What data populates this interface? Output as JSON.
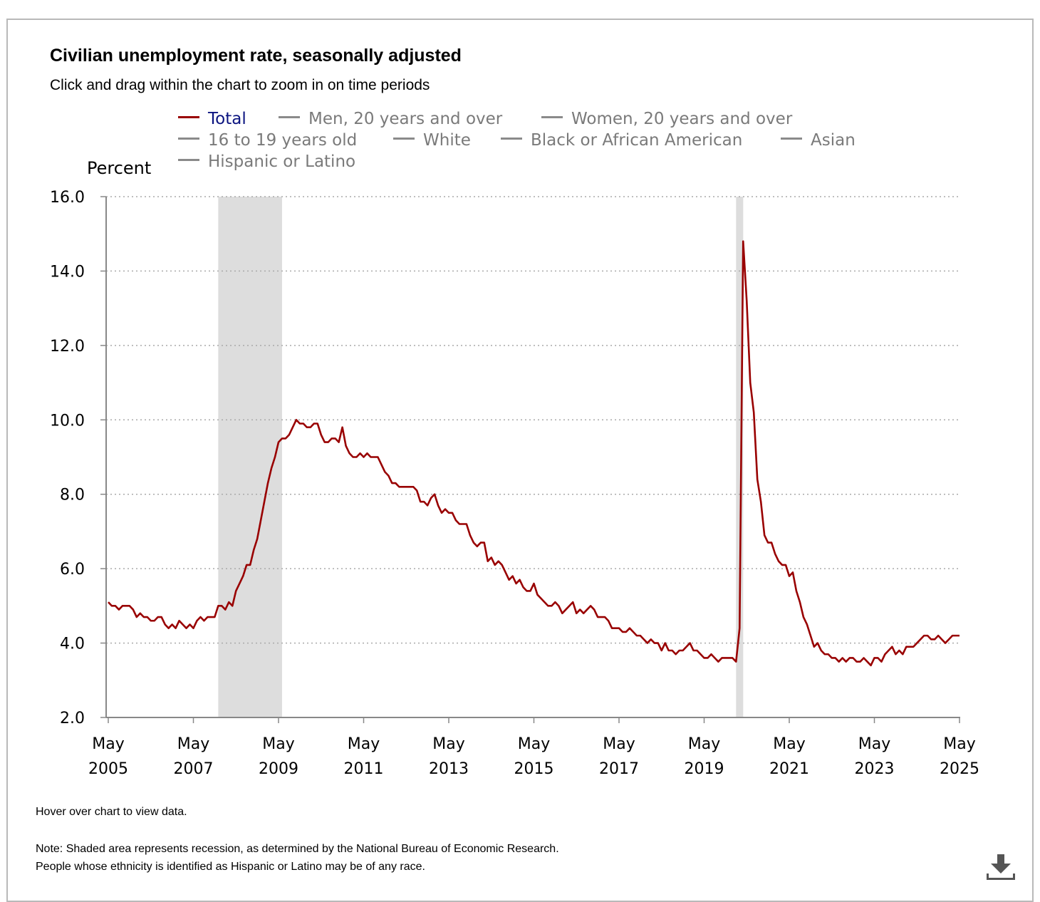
{
  "chart_title": "Civilian unemployment rate, seasonally adjusted",
  "subtitle": "Click and drag within the chart to zoom in on time periods",
  "legend": [
    {
      "label": "Total",
      "active": true
    },
    {
      "label": "Men, 20 years and over",
      "active": false
    },
    {
      "label": "Women, 20 years and over",
      "active": false
    },
    {
      "label": "16 to 19 years old",
      "active": false
    },
    {
      "label": "White",
      "active": false
    },
    {
      "label": "Black or African American",
      "active": false
    },
    {
      "label": "Asian",
      "active": false
    },
    {
      "label": "Hispanic or Latino",
      "active": false
    }
  ],
  "footer": {
    "hover_note": "Hover over chart to view data.",
    "note_line1": "Note: Shaded area represents recession, as determined by the National Bureau of Economic Research.",
    "note_line2": "People whose ethnicity is identified as Hispanic or Latino may be of any race."
  },
  "colors": {
    "series": "#990000",
    "active_legend_text": "#0b1480",
    "inactive_legend": "#7a7a7a",
    "recession_shade": "#dddddd",
    "grid": "#aaaaaa"
  },
  "icons": {
    "download": "download-icon"
  },
  "chart_data": {
    "type": "line",
    "title": "Civilian unemployment rate, seasonally adjusted",
    "ylabel": "Percent",
    "xlabel": "",
    "ylim": [
      2.0,
      16.0
    ],
    "yticks": [
      "16.0",
      "14.0",
      "12.0",
      "10.0",
      "8.0",
      "6.0",
      "4.0",
      "2.0"
    ],
    "xticks": [
      {
        "month": "May",
        "year": "2005"
      },
      {
        "month": "May",
        "year": "2007"
      },
      {
        "month": "May",
        "year": "2009"
      },
      {
        "month": "May",
        "year": "2011"
      },
      {
        "month": "May",
        "year": "2013"
      },
      {
        "month": "May",
        "year": "2015"
      },
      {
        "month": "May",
        "year": "2017"
      },
      {
        "month": "May",
        "year": "2019"
      },
      {
        "month": "May",
        "year": "2021"
      },
      {
        "month": "May",
        "year": "2023"
      },
      {
        "month": "May",
        "year": "2025"
      }
    ],
    "grid": true,
    "legend_position": "top",
    "recessions": [
      {
        "start": "2007-12",
        "end": "2009-06"
      },
      {
        "start": "2020-02",
        "end": "2020-04"
      }
    ],
    "series": [
      {
        "name": "Total",
        "start": "2005-05",
        "frequency": "monthly",
        "values": [
          5.1,
          5.0,
          5.0,
          4.9,
          5.0,
          5.0,
          5.0,
          4.9,
          4.7,
          4.8,
          4.7,
          4.7,
          4.6,
          4.6,
          4.7,
          4.7,
          4.5,
          4.4,
          4.5,
          4.4,
          4.6,
          4.5,
          4.4,
          4.5,
          4.4,
          4.6,
          4.7,
          4.6,
          4.7,
          4.7,
          4.7,
          5.0,
          5.0,
          4.9,
          5.1,
          5.0,
          5.4,
          5.6,
          5.8,
          6.1,
          6.1,
          6.5,
          6.8,
          7.3,
          7.8,
          8.3,
          8.7,
          9.0,
          9.4,
          9.5,
          9.5,
          9.6,
          9.8,
          10.0,
          9.9,
          9.9,
          9.8,
          9.8,
          9.9,
          9.9,
          9.6,
          9.4,
          9.4,
          9.5,
          9.5,
          9.4,
          9.8,
          9.3,
          9.1,
          9.0,
          9.0,
          9.1,
          9.0,
          9.1,
          9.0,
          9.0,
          9.0,
          8.8,
          8.6,
          8.5,
          8.3,
          8.3,
          8.2,
          8.2,
          8.2,
          8.2,
          8.2,
          8.1,
          7.8,
          7.8,
          7.7,
          7.9,
          8.0,
          7.7,
          7.5,
          7.6,
          7.5,
          7.5,
          7.3,
          7.2,
          7.2,
          7.2,
          6.9,
          6.7,
          6.6,
          6.7,
          6.7,
          6.2,
          6.3,
          6.1,
          6.2,
          6.1,
          5.9,
          5.7,
          5.8,
          5.6,
          5.7,
          5.5,
          5.4,
          5.4,
          5.6,
          5.3,
          5.2,
          5.1,
          5.0,
          5.0,
          5.1,
          5.0,
          4.8,
          4.9,
          5.0,
          5.1,
          4.8,
          4.9,
          4.8,
          4.9,
          5.0,
          4.9,
          4.7,
          4.7,
          4.7,
          4.6,
          4.4,
          4.4,
          4.4,
          4.3,
          4.3,
          4.4,
          4.3,
          4.2,
          4.2,
          4.1,
          4.0,
          4.1,
          4.0,
          4.0,
          3.8,
          4.0,
          3.8,
          3.8,
          3.7,
          3.8,
          3.8,
          3.9,
          4.0,
          3.8,
          3.8,
          3.7,
          3.6,
          3.6,
          3.7,
          3.6,
          3.5,
          3.6,
          3.6,
          3.6,
          3.6,
          3.5,
          4.4,
          14.8,
          13.2,
          11.0,
          10.2,
          8.4,
          7.8,
          6.9,
          6.7,
          6.7,
          6.4,
          6.2,
          6.1,
          6.1,
          5.8,
          5.9,
          5.4,
          5.1,
          4.7,
          4.5,
          4.2,
          3.9,
          4.0,
          3.8,
          3.7,
          3.7,
          3.6,
          3.6,
          3.5,
          3.6,
          3.5,
          3.6,
          3.6,
          3.5,
          3.5,
          3.6,
          3.5,
          3.4,
          3.6,
          3.6,
          3.5,
          3.7,
          3.8,
          3.9,
          3.7,
          3.8,
          3.7,
          3.9,
          3.9,
          3.9,
          4.0,
          4.1,
          4.2,
          4.2,
          4.1,
          4.1,
          4.2,
          4.1,
          4.0,
          4.1,
          4.2,
          4.2,
          4.2
        ]
      }
    ]
  }
}
